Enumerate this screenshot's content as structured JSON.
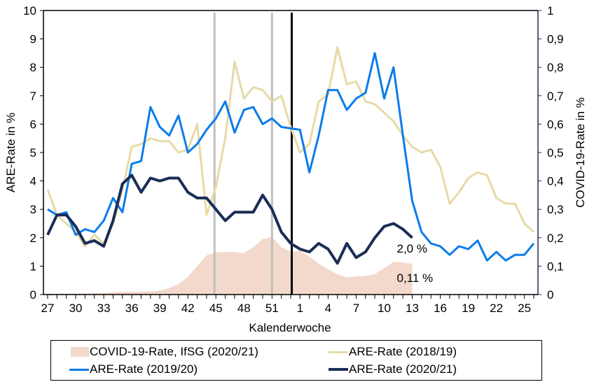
{
  "chart_data": {
    "type": "line",
    "title": "",
    "xlabel": "Kalenderwoche",
    "ylabel": "ARE-Rate in %",
    "y2label": "COVID-19-Rate in %",
    "ylim": [
      0,
      10
    ],
    "y2lim": [
      0,
      1
    ],
    "grid": false,
    "legend_position": "bottom",
    "x": [
      27,
      28,
      29,
      30,
      31,
      32,
      33,
      34,
      35,
      36,
      37,
      38,
      39,
      40,
      41,
      42,
      43,
      44,
      45,
      46,
      47,
      48,
      49,
      50,
      51,
      52,
      53,
      1,
      2,
      3,
      4,
      5,
      6,
      7,
      8,
      9,
      10,
      11,
      12,
      13,
      14,
      15,
      16,
      17,
      18,
      19,
      20,
      21,
      22,
      23,
      24,
      25,
      26
    ],
    "x_tick_labels": [
      "27",
      "30",
      "33",
      "36",
      "39",
      "42",
      "45",
      "48",
      "51",
      "1",
      "4",
      "7",
      "10",
      "13",
      "16",
      "19",
      "22",
      "25"
    ],
    "y_tick_labels": [
      "0",
      "1",
      "2",
      "3",
      "4",
      "5",
      "6",
      "7",
      "8",
      "9",
      "10"
    ],
    "y2_tick_labels": [
      "0",
      "0,1",
      "0,2",
      "0,3",
      "0,4",
      "0,5",
      "0,6",
      "0,7",
      "0,8",
      "0,9",
      "1"
    ],
    "series": [
      {
        "name": "COVID-19-Rate, IfSG (2020/21)",
        "kind": "area",
        "axis": "right",
        "color": "#F2D9CB",
        "values": [
          0.003,
          0.003,
          0.003,
          0.003,
          0.004,
          0.005,
          0.006,
          0.008,
          0.009,
          0.009,
          0.01,
          0.011,
          0.014,
          0.023,
          0.037,
          0.062,
          0.1,
          0.138,
          0.148,
          0.15,
          0.15,
          0.146,
          0.167,
          0.195,
          0.202,
          0.167,
          0.15,
          0.154,
          0.134,
          0.109,
          0.089,
          0.072,
          0.06,
          0.064,
          0.066,
          0.072,
          0.093,
          0.115,
          0.113,
          0.108
        ]
      },
      {
        "name": "ARE-Rate (2018/19)",
        "kind": "line",
        "axis": "left",
        "color": "#E6DAA6",
        "values": [
          3.7,
          2.8,
          2.5,
          2.2,
          1.7,
          2.1,
          1.8,
          2.5,
          3.7,
          5.2,
          5.3,
          5.5,
          5.4,
          5.4,
          5.0,
          5.1,
          6.0,
          2.8,
          3.8,
          5.5,
          8.2,
          6.9,
          7.3,
          7.2,
          6.8,
          7.0,
          5.9,
          5.0,
          5.3,
          6.8,
          7.05,
          8.7,
          7.4,
          7.5,
          6.8,
          6.7,
          6.4,
          6.1,
          5.6,
          5.2,
          5.0,
          5.1,
          4.5,
          3.2,
          3.6,
          4.1,
          4.3,
          4.2,
          3.4,
          3.2,
          3.2,
          2.5,
          2.2
        ]
      },
      {
        "name": "ARE-Rate (2019/20)",
        "kind": "line",
        "axis": "left",
        "color": "#0A7CEB",
        "values": [
          3.0,
          2.8,
          2.9,
          2.1,
          2.3,
          2.2,
          2.6,
          3.4,
          2.9,
          4.6,
          4.7,
          6.6,
          5.9,
          5.6,
          6.3,
          5.0,
          5.3,
          5.8,
          6.2,
          6.8,
          5.7,
          6.5,
          6.6,
          6.0,
          6.2,
          5.9,
          5.85,
          5.8,
          4.3,
          5.6,
          7.2,
          7.2,
          6.5,
          6.9,
          7.1,
          8.5,
          6.9,
          8.0,
          5.6,
          3.3,
          2.2,
          1.8,
          1.7,
          1.4,
          1.7,
          1.6,
          1.9,
          1.2,
          1.5,
          1.2,
          1.4,
          1.4,
          1.8
        ]
      },
      {
        "name": "ARE-Rate (2020/21)",
        "kind": "line",
        "axis": "left",
        "color": "#1B2D55",
        "values": [
          2.1,
          2.8,
          2.8,
          2.4,
          1.8,
          1.9,
          1.7,
          2.6,
          3.9,
          4.2,
          3.6,
          4.1,
          4.0,
          4.1,
          4.1,
          3.6,
          3.4,
          3.4,
          3.0,
          2.6,
          2.9,
          2.9,
          2.9,
          3.5,
          3.0,
          2.2,
          1.8,
          1.6,
          1.5,
          1.8,
          1.6,
          1.1,
          1.8,
          1.3,
          1.5,
          2.0,
          2.4,
          2.5,
          2.3,
          2.0
        ]
      }
    ],
    "vertical_markers": [
      {
        "week": 45,
        "color": "#BFBFBF"
      },
      {
        "week": 51,
        "color": "#BFBFBF"
      },
      {
        "week": 53,
        "color": "#000000"
      }
    ],
    "annotations": [
      {
        "text": "2,0 %",
        "series": "ARE-Rate (2020/21)",
        "week": 13
      },
      {
        "text": "0,11 %",
        "series": "COVID-19-Rate, IfSG (2020/21)",
        "week": 13
      }
    ]
  },
  "legend": {
    "items": [
      {
        "label": "COVID-19-Rate, IfSG (2020/21)",
        "color": "#F2D9CB",
        "kind": "area"
      },
      {
        "label": "ARE-Rate (2018/19)",
        "color": "#E6DAA6",
        "kind": "line"
      },
      {
        "label": "ARE-Rate (2019/20)",
        "color": "#0A7CEB",
        "kind": "line"
      },
      {
        "label": "ARE-Rate (2020/21)",
        "color": "#1B2D55",
        "kind": "line"
      }
    ]
  }
}
